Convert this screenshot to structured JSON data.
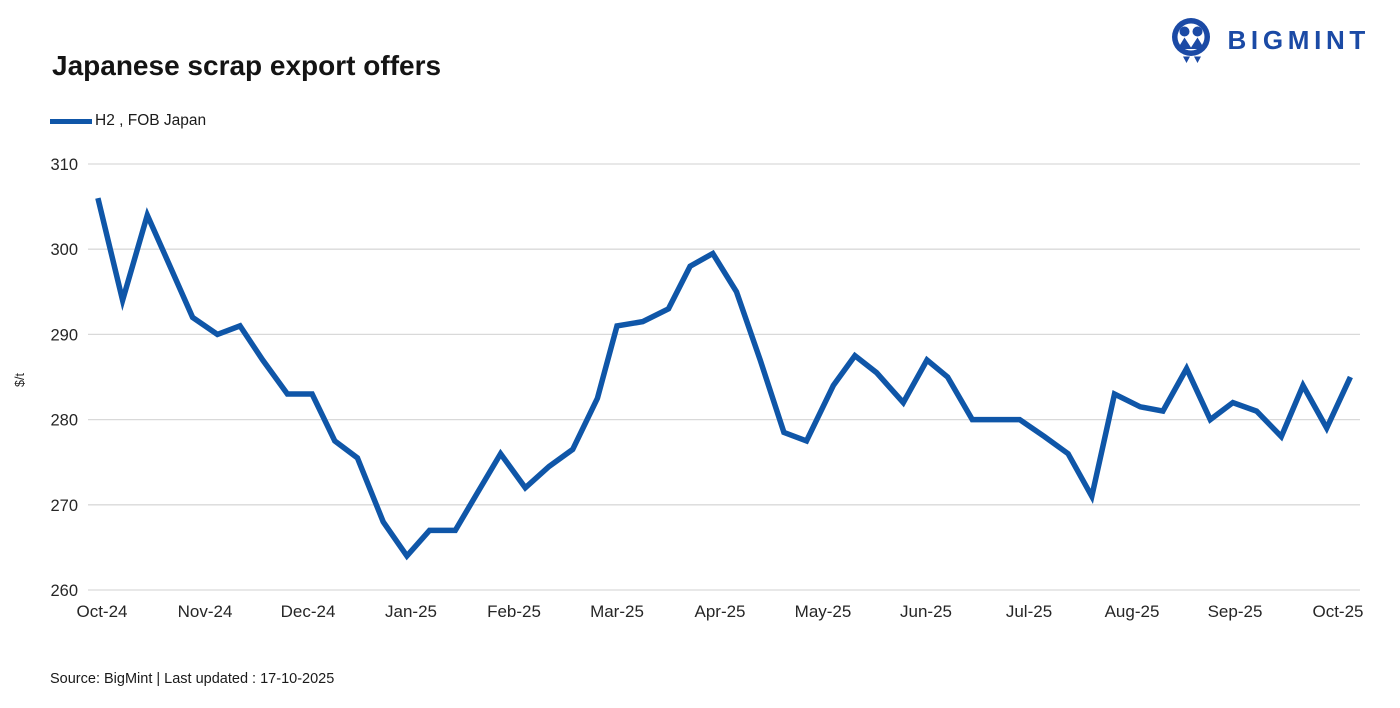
{
  "header": {
    "title": "Japanese scrap export offers",
    "brand": "BIGMINT"
  },
  "legend": {
    "label": "H2 , FOB Japan"
  },
  "footer": {
    "source_note": "Source: BigMint  | Last updated : 17-10-2025"
  },
  "colors": {
    "line": "#0F56A8",
    "logo": "#1B4AA5",
    "grid": "#D9D9D9",
    "axis_text": "#262626",
    "title_text": "#141414"
  },
  "chart_data": {
    "type": "line",
    "title": "Japanese scrap export offers",
    "series_name": "H2 , FOB Japan",
    "ylabel": "$/t",
    "ylim": [
      260,
      310
    ],
    "yticks": [
      310,
      300,
      290,
      280,
      270,
      260
    ],
    "xticks": [
      "Oct-24",
      "Nov-24",
      "Dec-24",
      "Jan-25",
      "Feb-25",
      "Mar-25",
      "Apr-25",
      "May-25",
      "Jun-25",
      "Jul-25",
      "Aug-25",
      "Sep-25",
      "Oct-25"
    ],
    "grid": "horizontal",
    "legend_position": "top-left",
    "x_unit": "months-from-Oct-24",
    "points": [
      [
        -0.04,
        306
      ],
      [
        0.2,
        294
      ],
      [
        0.44,
        304
      ],
      [
        0.66,
        298
      ],
      [
        0.88,
        292
      ],
      [
        1.12,
        290
      ],
      [
        1.34,
        291
      ],
      [
        1.56,
        287
      ],
      [
        1.8,
        283
      ],
      [
        2.04,
        283
      ],
      [
        2.26,
        277.5
      ],
      [
        2.48,
        275.5
      ],
      [
        2.73,
        268
      ],
      [
        2.96,
        264
      ],
      [
        3.18,
        267
      ],
      [
        3.43,
        267
      ],
      [
        3.65,
        271.5
      ],
      [
        3.87,
        276
      ],
      [
        4.11,
        272
      ],
      [
        4.34,
        274.5
      ],
      [
        4.57,
        276.5
      ],
      [
        4.81,
        282.5
      ],
      [
        5.0,
        291
      ],
      [
        5.25,
        291.5
      ],
      [
        5.5,
        293
      ],
      [
        5.71,
        298
      ],
      [
        5.93,
        299.5
      ],
      [
        6.16,
        295
      ],
      [
        6.39,
        287
      ],
      [
        6.62,
        278.5
      ],
      [
        6.84,
        277.5
      ],
      [
        7.1,
        284
      ],
      [
        7.31,
        287.5
      ],
      [
        7.52,
        285.5
      ],
      [
        7.78,
        282
      ],
      [
        8.01,
        287
      ],
      [
        8.21,
        285
      ],
      [
        8.45,
        280
      ],
      [
        8.68,
        280
      ],
      [
        8.91,
        280
      ],
      [
        9.15,
        278
      ],
      [
        9.38,
        276
      ],
      [
        9.61,
        271
      ],
      [
        9.83,
        283
      ],
      [
        10.08,
        281.5
      ],
      [
        10.3,
        281
      ],
      [
        10.53,
        286
      ],
      [
        10.76,
        280
      ],
      [
        10.98,
        282
      ],
      [
        11.21,
        281
      ],
      [
        11.45,
        278
      ],
      [
        11.66,
        284
      ],
      [
        11.89,
        279
      ],
      [
        12.12,
        285
      ]
    ]
  }
}
